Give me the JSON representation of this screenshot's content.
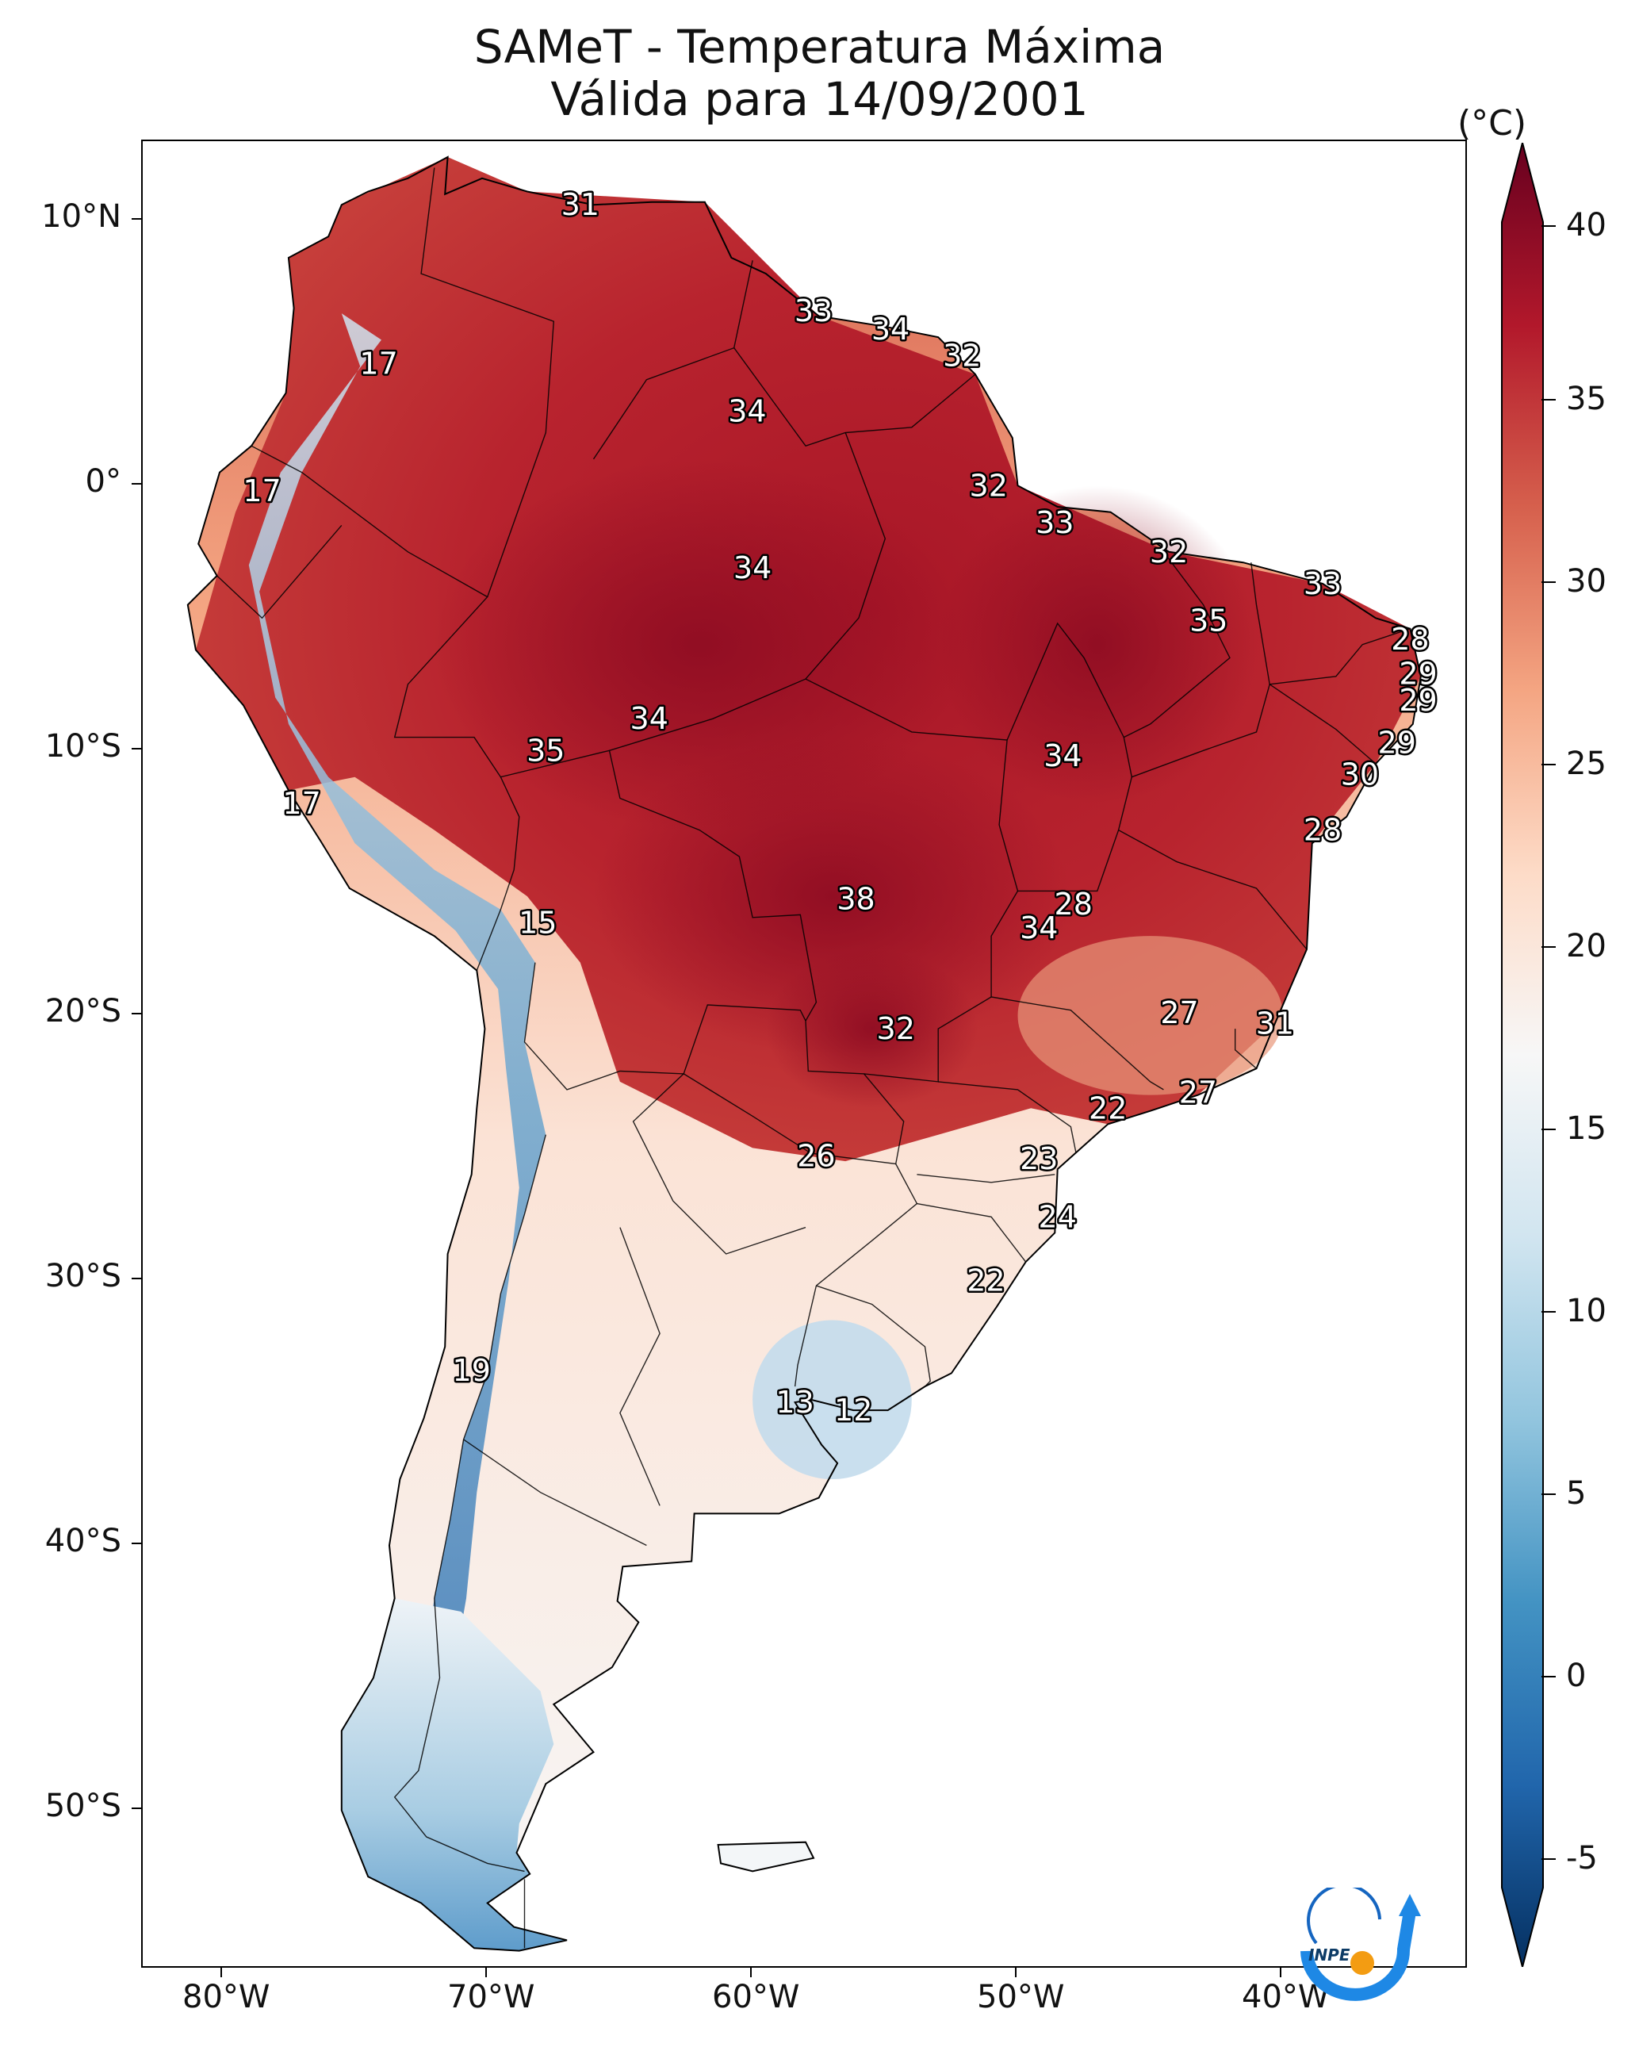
{
  "title": {
    "line1": "SAMeT - Temperatura Máxima",
    "line2": "Válida para 14/09/2001"
  },
  "axes": {
    "lat_labels": [
      "10°N",
      "0°",
      "10°S",
      "20°S",
      "30°S",
      "40°S",
      "50°S"
    ],
    "lon_labels": [
      "80°W",
      "70°W",
      "60°W",
      "50°W",
      "40°W"
    ]
  },
  "colorbar": {
    "unit": "(°C)",
    "ticks": [
      "40",
      "35",
      "30",
      "25",
      "20",
      "15",
      "10",
      "5",
      "0",
      "-5"
    ],
    "min": -7,
    "max": 40,
    "colors": [
      "#67001f",
      "#b2182b",
      "#d6604d",
      "#f4a582",
      "#fddbc7",
      "#f7f7f7",
      "#d1e5f0",
      "#92c5de",
      "#4393c3",
      "#2166ac",
      "#053061"
    ]
  },
  "map": {
    "extent": {
      "lon_min": -83,
      "lon_max": -33,
      "lat_min": -56,
      "lat_max": 13
    },
    "city_labels": [
      {
        "text": "31",
        "lon": -66.5,
        "lat": 10.6
      },
      {
        "text": "33",
        "lon": -57.7,
        "lat": 6.6
      },
      {
        "text": "34",
        "lon": -54.8,
        "lat": 5.9
      },
      {
        "text": "32",
        "lon": -52.1,
        "lat": 4.9
      },
      {
        "text": "17",
        "lon": -74.1,
        "lat": 4.6
      },
      {
        "text": "34",
        "lon": -60.2,
        "lat": 2.8
      },
      {
        "text": "32",
        "lon": -51.1,
        "lat": 0.0
      },
      {
        "text": "17",
        "lon": -78.5,
        "lat": -0.2
      },
      {
        "text": "33",
        "lon": -48.6,
        "lat": -1.4
      },
      {
        "text": "32",
        "lon": -44.3,
        "lat": -2.5
      },
      {
        "text": "34",
        "lon": -60.0,
        "lat": -3.1
      },
      {
        "text": "33",
        "lon": -38.5,
        "lat": -3.7
      },
      {
        "text": "35",
        "lon": -42.8,
        "lat": -5.1
      },
      {
        "text": "28",
        "lon": -35.2,
        "lat": -5.8
      },
      {
        "text": "29",
        "lon": -34.9,
        "lat": -7.1
      },
      {
        "text": "29",
        "lon": -34.9,
        "lat": -8.1
      },
      {
        "text": "34",
        "lon": -63.9,
        "lat": -8.8
      },
      {
        "text": "35",
        "lon": -67.8,
        "lat": -10.0
      },
      {
        "text": "29",
        "lon": -35.7,
        "lat": -9.7
      },
      {
        "text": "34",
        "lon": -48.3,
        "lat": -10.2
      },
      {
        "text": "30",
        "lon": -37.1,
        "lat": -10.9
      },
      {
        "text": "17",
        "lon": -77.0,
        "lat": -12.0
      },
      {
        "text": "28",
        "lon": -38.5,
        "lat": -13.0
      },
      {
        "text": "28",
        "lon": -47.9,
        "lat": -15.8
      },
      {
        "text": "38",
        "lon": -56.1,
        "lat": -15.6
      },
      {
        "text": "15",
        "lon": -68.1,
        "lat": -16.5
      },
      {
        "text": "34",
        "lon": -49.2,
        "lat": -16.7
      },
      {
        "text": "27",
        "lon": -43.9,
        "lat": -19.9
      },
      {
        "text": "31",
        "lon": -40.3,
        "lat": -20.3
      },
      {
        "text": "32",
        "lon": -54.6,
        "lat": -20.5
      },
      {
        "text": "27",
        "lon": -43.2,
        "lat": -22.9
      },
      {
        "text": "22",
        "lon": -46.6,
        "lat": -23.5
      },
      {
        "text": "26",
        "lon": -57.6,
        "lat": -25.3
      },
      {
        "text": "23",
        "lon": -49.2,
        "lat": -25.4
      },
      {
        "text": "24",
        "lon": -48.5,
        "lat": -27.6
      },
      {
        "text": "22",
        "lon": -51.2,
        "lat": -30.0
      },
      {
        "text": "19",
        "lon": -70.6,
        "lat": -33.4
      },
      {
        "text": "13",
        "lon": -58.4,
        "lat": -34.6
      },
      {
        "text": "12",
        "lon": -56.2,
        "lat": -34.9
      }
    ]
  },
  "logo": {
    "text": "INPE"
  }
}
